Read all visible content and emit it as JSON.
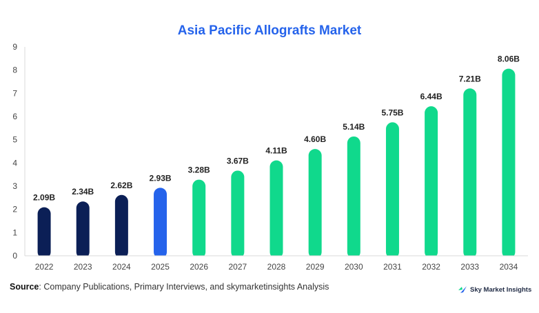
{
  "chart_data": {
    "type": "bar",
    "title": "Asia Pacific Allografts Market",
    "categories": [
      "2022",
      "2023",
      "2024",
      "2025",
      "2026",
      "2027",
      "2028",
      "2029",
      "2030",
      "2031",
      "2032",
      "2033",
      "2034"
    ],
    "values": [
      2.09,
      2.34,
      2.62,
      2.93,
      3.28,
      3.67,
      4.11,
      4.6,
      5.14,
      5.75,
      6.44,
      7.21,
      8.06
    ],
    "data_labels": [
      "2.09B",
      "2.34B",
      "2.62B",
      "2.93B",
      "3.28B",
      "3.67B",
      "4.11B",
      "4.60B",
      "5.14B",
      "5.75B",
      "6.44B",
      "7.21B",
      "8.06B"
    ],
    "bar_colors": [
      "#0b1f56",
      "#0b1f56",
      "#0b1f56",
      "#2563eb",
      "#10d98c",
      "#10d98c",
      "#10d98c",
      "#10d98c",
      "#10d98c",
      "#10d98c",
      "#10d98c",
      "#10d98c",
      "#10d98c"
    ],
    "xlabel": "",
    "ylabel": "",
    "ylim": [
      0,
      9
    ],
    "yticks": [
      "0",
      "1",
      "2",
      "3",
      "4",
      "5",
      "6",
      "7",
      "8",
      "9"
    ],
    "grid": false,
    "legend": "none"
  },
  "footer": {
    "source_label": "Source",
    "source_text": ": Company Publications, Primary Interviews, and skymarketinsights Analysis",
    "brand_name": "Sky Market Insights"
  },
  "colors": {
    "title": "#2563eb",
    "historical": "#0b1f56",
    "base_year": "#2563eb",
    "forecast": "#10d98c"
  }
}
